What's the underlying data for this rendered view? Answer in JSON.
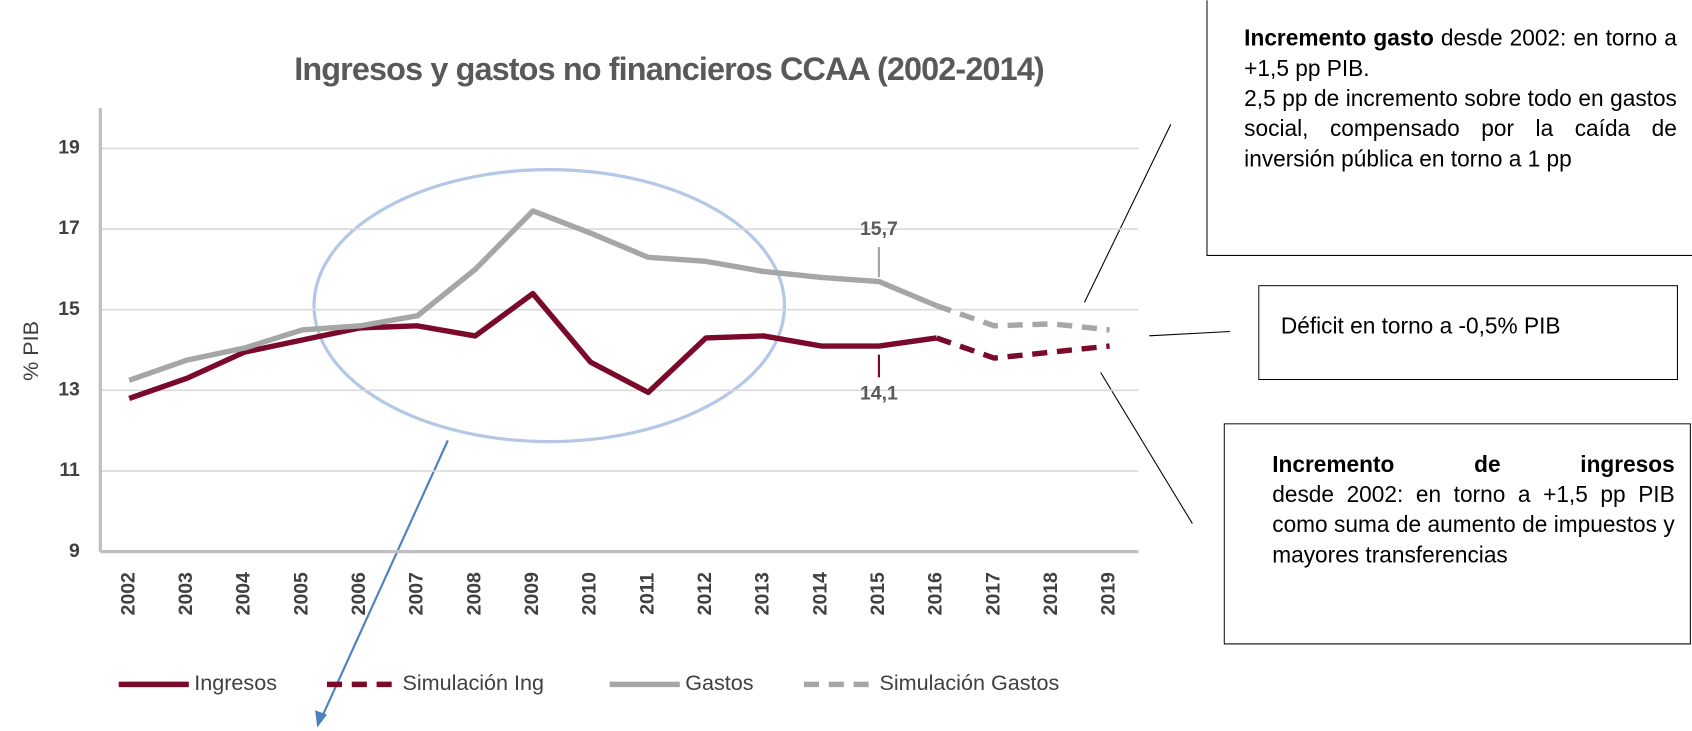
{
  "chart_data": {
    "type": "line",
    "title": "Ingresos y gastos no financieros CCAA (2002-2014)",
    "y_label": "% PIB",
    "categories": [
      "2002",
      "2003",
      "2004",
      "2005",
      "2006",
      "2007",
      "2008",
      "2009",
      "2010",
      "2011",
      "2012",
      "2013",
      "2014",
      "2015",
      "2016",
      "2017",
      "2018",
      "2019"
    ],
    "ylim": [
      9,
      20
    ],
    "yticks": [
      9,
      11,
      13,
      15,
      17,
      19
    ],
    "grid": true,
    "legend": "bottom",
    "series": [
      {
        "name": "Ingresos",
        "color": "#7b0a2a",
        "dashed": false,
        "values": [
          12.8,
          13.3,
          13.95,
          14.25,
          14.55,
          14.6,
          14.35,
          15.4,
          13.7,
          12.95,
          14.3,
          14.35,
          14.1,
          14.1,
          14.3,
          null,
          null,
          null
        ],
        "value_labels": [
          null,
          null,
          null,
          null,
          null,
          null,
          null,
          null,
          null,
          null,
          null,
          null,
          null,
          "14,1",
          null,
          null,
          null,
          null
        ]
      },
      {
        "name": "Simulación Ing",
        "color": "#7b0a2a",
        "dashed": true,
        "values": [
          null,
          null,
          null,
          null,
          null,
          null,
          null,
          null,
          null,
          null,
          null,
          null,
          null,
          null,
          14.3,
          13.8,
          13.95,
          14.1
        ]
      },
      {
        "name": "Gastos",
        "color": "#a6a6a6",
        "dashed": false,
        "values": [
          13.25,
          13.75,
          14.05,
          14.5,
          14.6,
          14.85,
          16.0,
          17.45,
          16.9,
          16.3,
          16.2,
          15.95,
          15.8,
          15.7,
          15.1,
          null,
          null,
          null
        ],
        "value_labels": [
          null,
          null,
          null,
          null,
          null,
          null,
          null,
          null,
          null,
          null,
          null,
          null,
          null,
          "15,7",
          null,
          null,
          null,
          null
        ]
      },
      {
        "name": "Simulación Gastos",
        "color": "#a6a6a6",
        "dashed": true,
        "values": [
          null,
          null,
          null,
          null,
          null,
          null,
          null,
          null,
          null,
          null,
          null,
          null,
          null,
          null,
          15.1,
          14.6,
          14.65,
          14.5
        ]
      }
    ],
    "annotations": [
      {
        "bold": "Incremento gasto",
        "text": "desde 2002: en torno a +1,5 pp PIB.",
        "text2": "2,5 pp de incremento sobre todo en gastos social, compensado por la caída de inversión pública en torno a 1 pp"
      },
      {
        "text": "Déficit  en torno a -0,5% PIB"
      },
      {
        "bold": "Incremento de ingresos",
        "text": "desde 2002: en torno a +1,5 pp PIB como suma de aumento de impuestos y mayores transferencias"
      }
    ]
  }
}
